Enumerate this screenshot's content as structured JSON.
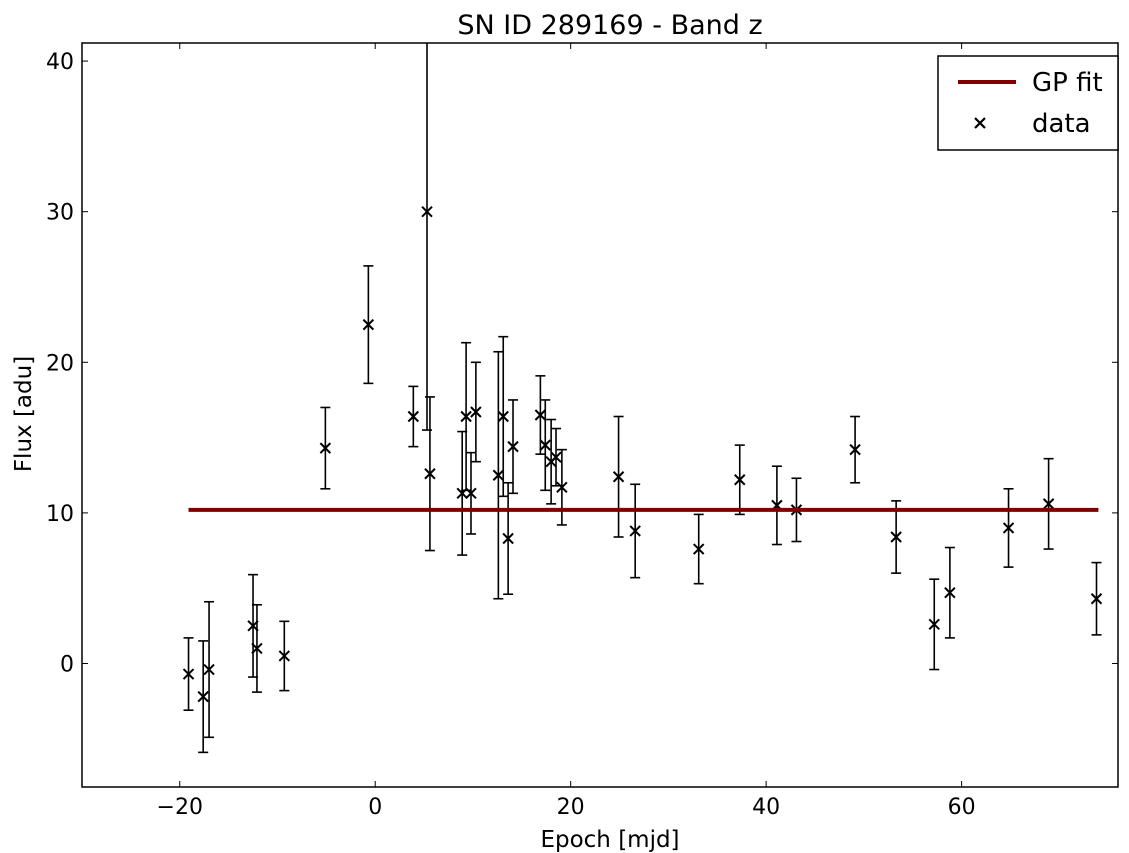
{
  "chart_data": {
    "type": "scatter",
    "title": "SN ID 289169 - Band z",
    "xlabel": "Epoch [mjd]",
    "ylabel": "Flux [adu]",
    "xlim": [
      -30,
      76
    ],
    "ylim": [
      -8.2,
      41.2
    ],
    "xticks": [
      -20,
      0,
      20,
      40,
      60
    ],
    "yticks": [
      0,
      10,
      20,
      30,
      40
    ],
    "tick_labels_x": [
      "−20",
      "0",
      "20",
      "40",
      "60"
    ],
    "tick_labels_y": [
      "0",
      "10",
      "20",
      "30",
      "40"
    ],
    "grid": false,
    "legend": {
      "placement": "top-right",
      "entries": [
        {
          "label": "GP fit",
          "marker": "line",
          "color": "#800000"
        },
        {
          "label": "data",
          "marker": "x",
          "color": "#000000"
        }
      ]
    },
    "series": [
      {
        "name": "GP fit",
        "kind": "line",
        "color": "#800000",
        "x": [
          -19.1,
          74.0
        ],
        "y": [
          10.2,
          10.2
        ]
      },
      {
        "name": "data",
        "kind": "errorbar",
        "color": "#000000",
        "points": [
          {
            "x": -19.1,
            "y": -0.7,
            "err": 2.4
          },
          {
            "x": -17.6,
            "y": -2.2,
            "err": 3.7
          },
          {
            "x": -17.0,
            "y": -0.4,
            "err": 4.5
          },
          {
            "x": -12.5,
            "y": 2.5,
            "err": 3.4
          },
          {
            "x": -12.1,
            "y": 1.0,
            "err": 2.9
          },
          {
            "x": -9.3,
            "y": 0.5,
            "err": 2.3
          },
          {
            "x": -5.1,
            "y": 14.3,
            "err": 2.7
          },
          {
            "x": -0.7,
            "y": 22.5,
            "err": 3.9
          },
          {
            "x": 3.9,
            "y": 16.4,
            "err": 2.0
          },
          {
            "x": 5.3,
            "y": 30.0,
            "err": 14.5
          },
          {
            "x": 5.6,
            "y": 12.6,
            "err": 5.1
          },
          {
            "x": 8.9,
            "y": 11.3,
            "err": 4.1
          },
          {
            "x": 9.3,
            "y": 16.4,
            "err": 4.9
          },
          {
            "x": 9.8,
            "y": 11.3,
            "err": 2.7
          },
          {
            "x": 10.3,
            "y": 16.7,
            "err": 3.3
          },
          {
            "x": 12.6,
            "y": 12.5,
            "err": 8.2
          },
          {
            "x": 13.1,
            "y": 16.4,
            "err": 5.3
          },
          {
            "x": 13.6,
            "y": 8.3,
            "err": 3.7
          },
          {
            "x": 14.1,
            "y": 14.4,
            "err": 3.1
          },
          {
            "x": 16.9,
            "y": 16.5,
            "err": 2.6
          },
          {
            "x": 17.4,
            "y": 14.5,
            "err": 3.0
          },
          {
            "x": 18.0,
            "y": 13.4,
            "err": 2.8
          },
          {
            "x": 18.5,
            "y": 13.7,
            "err": 1.9
          },
          {
            "x": 19.1,
            "y": 11.7,
            "err": 2.5
          },
          {
            "x": 24.9,
            "y": 12.4,
            "err": 4.0
          },
          {
            "x": 26.6,
            "y": 8.8,
            "err": 3.1
          },
          {
            "x": 33.1,
            "y": 7.6,
            "err": 2.3
          },
          {
            "x": 37.3,
            "y": 12.2,
            "err": 2.3
          },
          {
            "x": 41.1,
            "y": 10.5,
            "err": 2.6
          },
          {
            "x": 43.1,
            "y": 10.2,
            "err": 2.1
          },
          {
            "x": 49.1,
            "y": 14.2,
            "err": 2.2
          },
          {
            "x": 53.3,
            "y": 8.4,
            "err": 2.4
          },
          {
            "x": 57.2,
            "y": 2.6,
            "err": 3.0
          },
          {
            "x": 58.8,
            "y": 4.7,
            "err": 3.0
          },
          {
            "x": 64.8,
            "y": 9.0,
            "err": 2.6
          },
          {
            "x": 68.9,
            "y": 10.6,
            "err": 3.0
          },
          {
            "x": 73.8,
            "y": 4.3,
            "err": 2.4
          }
        ]
      }
    ]
  }
}
